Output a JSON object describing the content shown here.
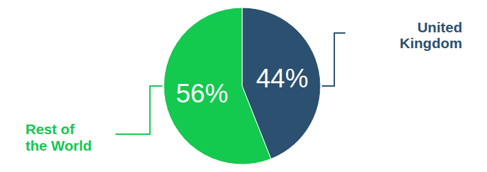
{
  "chart_data": {
    "type": "pie",
    "categories": [
      "United Kingdom",
      "Rest of the World"
    ],
    "values": [
      44,
      56
    ],
    "value_labels": [
      "44%",
      "56%"
    ],
    "colors": [
      "#2b5070",
      "#13c94e"
    ],
    "data_labels": true
  }
}
